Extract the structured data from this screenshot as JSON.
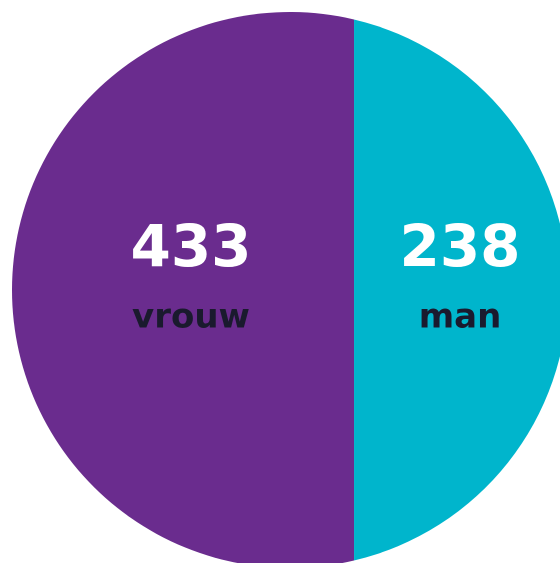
{
  "chart_data": {
    "type": "pie",
    "categories": [
      "vrouw",
      "man"
    ],
    "values": [
      433,
      238
    ],
    "colors": [
      "#6a2c8e",
      "#00b5cc"
    ]
  }
}
